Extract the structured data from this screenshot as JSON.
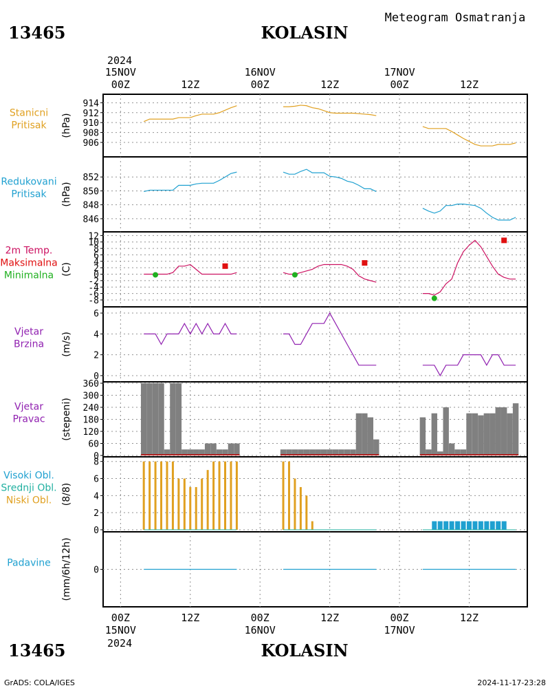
{
  "header": {
    "station_id": "13465",
    "station_name": "KOLASIN",
    "subtitle": "Meteogram Osmatranja",
    "year": "2024"
  },
  "footer": {
    "station_id": "13465",
    "station_name": "KOLASIN",
    "credit": "GrADS: COLA/IGES",
    "timestamp": "2024-11-17-23:28"
  },
  "time_axis": {
    "top_labels": [
      {
        "hour": 0,
        "text": "00Z",
        "date": "15NOV"
      },
      {
        "hour": 12,
        "text": "12Z",
        "date": ""
      },
      {
        "hour": 24,
        "text": "00Z",
        "date": "16NOV"
      },
      {
        "hour": 36,
        "text": "12Z",
        "date": ""
      },
      {
        "hour": 48,
        "text": "00Z",
        "date": "17NOV"
      },
      {
        "hour": 60,
        "text": "12Z",
        "date": ""
      }
    ],
    "range_hours": [
      -3,
      70
    ]
  },
  "panels": [
    {
      "id": "pressure",
      "label_lines": [
        {
          "text": "Stanicni",
          "color": "#e0a020"
        },
        {
          "text": "Pritisak",
          "color": "#e0a020"
        }
      ],
      "unit": "(hPa)"
    },
    {
      "id": "reduced",
      "label_lines": [
        {
          "text": "Redukovani",
          "color": "#1fa0d0"
        },
        {
          "text": "Pritisak",
          "color": "#1fa0d0"
        }
      ],
      "unit": "(hPa)"
    },
    {
      "id": "temp",
      "label_lines": [
        {
          "text": "2m Temp.",
          "color": "#cc1060"
        },
        {
          "text": "Maksimalna",
          "color": "#e01010"
        },
        {
          "text": "Minimalna",
          "color": "#20b020"
        }
      ],
      "unit": "(C)"
    },
    {
      "id": "wspeed",
      "label_lines": [
        {
          "text": "Vjetar",
          "color": "#9020b0"
        },
        {
          "text": "Brzina",
          "color": "#9020b0"
        }
      ],
      "unit": "(m/s)"
    },
    {
      "id": "wdir",
      "label_lines": [
        {
          "text": "Vjetar",
          "color": "#9020b0"
        },
        {
          "text": "Pravac",
          "color": "#9020b0"
        }
      ],
      "unit": "(stepeni)"
    },
    {
      "id": "cloud",
      "label_lines": [
        {
          "text": "Visoki Obl.",
          "color": "#1fa0d0"
        },
        {
          "text": "Srednji Obl.",
          "color": "#20b0a0"
        },
        {
          "text": "Niski Obl.",
          "color": "#e0a020"
        }
      ],
      "unit": "(8/8)"
    },
    {
      "id": "precip",
      "label_lines": [
        {
          "text": "Padavine",
          "color": "#1fa0d0"
        }
      ],
      "unit": "(mm/6h/12h)"
    }
  ],
  "chart_data": [
    {
      "type": "line",
      "id": "pressure",
      "ylabel": "(hPa)",
      "ylim": [
        904.2,
        914.6
      ],
      "yticks": [
        906,
        908,
        910,
        912,
        914
      ],
      "color": "#e0a020",
      "series": [
        {
          "x": [
            4,
            5,
            6,
            7,
            8,
            9,
            10,
            11,
            12,
            13,
            14,
            15,
            16,
            17,
            18,
            19,
            20
          ],
          "y": [
            910.2,
            910.7,
            910.7,
            910.7,
            910.7,
            910.7,
            911.0,
            911.0,
            911.0,
            911.4,
            911.7,
            911.7,
            911.7,
            912.0,
            912.5,
            913.0,
            913.4
          ]
        },
        {
          "x": [
            28,
            29,
            30,
            31,
            32,
            33,
            34,
            35,
            36,
            37,
            38,
            39,
            40,
            41,
            42,
            43,
            44
          ],
          "y": [
            913.2,
            913.2,
            913.3,
            913.5,
            913.4,
            913.0,
            912.8,
            912.4,
            912.0,
            911.9,
            911.9,
            911.9,
            911.9,
            911.8,
            911.7,
            911.6,
            911.4
          ]
        },
        {
          "x": [
            52,
            53,
            54,
            55,
            56,
            57,
            58,
            59,
            60,
            61,
            62,
            63,
            64,
            65,
            66,
            67,
            68
          ],
          "y": [
            909.2,
            908.8,
            908.8,
            908.8,
            908.8,
            908.2,
            907.5,
            906.8,
            906.2,
            905.6,
            905.3,
            905.3,
            905.3,
            905.6,
            905.6,
            905.6,
            905.9
          ]
        }
      ]
    },
    {
      "type": "line",
      "id": "reduced",
      "ylabel": "(hPa)",
      "ylim": [
        845.0,
        854.0
      ],
      "yticks": [
        846,
        848,
        850,
        852
      ],
      "color": "#1fa0d0",
      "series": [
        {
          "x": [
            4,
            5,
            6,
            7,
            8,
            9,
            10,
            11,
            12,
            13,
            14,
            15,
            16,
            17,
            18,
            19,
            20
          ],
          "y": [
            849.9,
            850.1,
            850.1,
            850.1,
            850.1,
            850.1,
            850.8,
            850.8,
            850.8,
            851.0,
            851.1,
            851.1,
            851.1,
            851.5,
            852.0,
            852.5,
            852.7
          ]
        },
        {
          "x": [
            28,
            29,
            30,
            31,
            32,
            33,
            34,
            35,
            36,
            37,
            38,
            39,
            40,
            41,
            42,
            43,
            44
          ],
          "y": [
            852.7,
            852.4,
            852.4,
            852.8,
            853.1,
            852.6,
            852.6,
            852.6,
            852.1,
            852.0,
            851.8,
            851.4,
            851.2,
            850.8,
            850.3,
            850.3,
            849.9
          ]
        },
        {
          "x": [
            52,
            53,
            54,
            55,
            56,
            57,
            58,
            59,
            60,
            61,
            62,
            63,
            64,
            65,
            66,
            67,
            68
          ],
          "y": [
            847.5,
            847.1,
            846.8,
            847.1,
            847.9,
            847.9,
            848.1,
            848.1,
            848.0,
            847.9,
            847.5,
            846.8,
            846.2,
            845.8,
            845.8,
            845.8,
            846.2
          ]
        }
      ]
    },
    {
      "type": "line",
      "id": "temp",
      "ylabel": "(C)",
      "ylim": [
        -9.5,
        12.5
      ],
      "yticks": [
        -8,
        -6,
        -4,
        -2,
        0,
        2,
        4,
        6,
        8,
        10,
        12
      ],
      "color": "#cc1060",
      "series": [
        {
          "x": [
            4,
            5,
            6,
            7,
            8,
            9,
            10,
            11,
            12,
            13,
            14,
            15,
            16,
            17,
            18,
            19,
            20
          ],
          "y": [
            0,
            0,
            0,
            0,
            0,
            0.5,
            2.5,
            2.5,
            3,
            1.5,
            0,
            0,
            0,
            0,
            0,
            0,
            0.5
          ]
        },
        {
          "x": [
            28,
            29,
            30,
            31,
            32,
            33,
            34,
            35,
            36,
            37,
            38,
            39,
            40,
            41,
            42,
            43,
            44
          ],
          "y": [
            0.5,
            0,
            0,
            0.5,
            1,
            1.5,
            2.5,
            3,
            3,
            3,
            3,
            2.5,
            1.5,
            -0.5,
            -1.5,
            -2,
            -2.5
          ]
        },
        {
          "x": [
            52,
            53,
            54,
            55,
            56,
            57,
            58,
            59,
            60,
            61,
            62,
            63,
            64,
            65,
            66,
            67,
            68
          ],
          "y": [
            -6,
            -6,
            -6.5,
            -5.5,
            -3,
            -1.5,
            3.5,
            7,
            9,
            10.5,
            8.5,
            5.5,
            2.5,
            0,
            -1,
            -1.5,
            -1.5
          ]
        }
      ],
      "maximum": {
        "x": [
          18,
          42,
          66
        ],
        "y": [
          2.5,
          3.5,
          10.5
        ],
        "color": "#e01010"
      },
      "minimum": {
        "x": [
          6,
          30,
          54
        ],
        "y": [
          -0.2,
          -0.2,
          -7.5
        ],
        "color": "#20b020"
      }
    },
    {
      "type": "line",
      "id": "wspeed",
      "ylabel": "(m/s)",
      "ylim": [
        -0.2,
        6.2
      ],
      "yticks": [
        0,
        2,
        4,
        6
      ],
      "color": "#9020b0",
      "series": [
        {
          "x": [
            4,
            5,
            6,
            7,
            8,
            9,
            10,
            11,
            12,
            13,
            14,
            15,
            16,
            17,
            18,
            19,
            20
          ],
          "y": [
            4,
            4,
            4,
            3,
            4,
            4,
            4,
            5,
            4,
            5,
            4,
            5,
            4,
            4,
            5,
            4,
            4
          ]
        },
        {
          "x": [
            28,
            29,
            30,
            31,
            32,
            33,
            34,
            35,
            36,
            37,
            38,
            39,
            40,
            41,
            42,
            43,
            44
          ],
          "y": [
            4,
            4,
            3,
            3,
            4,
            5,
            5,
            5,
            6,
            5,
            4,
            3,
            2,
            1,
            1,
            1,
            1
          ]
        },
        {
          "x": [
            52,
            53,
            54,
            55,
            56,
            57,
            58,
            59,
            60,
            61,
            62,
            63,
            64,
            65,
            66,
            67,
            68
          ],
          "y": [
            1,
            1,
            1,
            0,
            1,
            1,
            1,
            2,
            2,
            2,
            2,
            1,
            2,
            2,
            1,
            1,
            1
          ]
        }
      ]
    },
    {
      "type": "bar",
      "id": "wdir",
      "ylabel": "(stepeni)",
      "ylim": [
        0,
        360
      ],
      "yticks": [
        0,
        60,
        120,
        180,
        240,
        300,
        360
      ],
      "color": "#808080",
      "baseline_color": "#c00000",
      "series": [
        {
          "x": [
            4,
            5,
            6,
            7,
            8,
            9,
            10,
            11,
            12,
            13,
            14,
            15,
            16,
            17,
            18,
            19,
            20
          ],
          "y": [
            360,
            360,
            360,
            360,
            30,
            360,
            360,
            30,
            30,
            30,
            30,
            60,
            60,
            30,
            30,
            60,
            60
          ]
        },
        {
          "x": [
            28,
            29,
            30,
            31,
            32,
            33,
            34,
            35,
            36,
            37,
            38,
            39,
            40,
            41,
            42,
            43,
            44
          ],
          "y": [
            30,
            30,
            30,
            30,
            30,
            30,
            30,
            30,
            30,
            30,
            30,
            30,
            30,
            210,
            210,
            190,
            80
          ]
        },
        {
          "x": [
            52,
            53,
            54,
            55,
            56,
            57,
            58,
            59,
            60,
            61,
            62,
            63,
            64,
            65,
            66,
            67,
            68
          ],
          "y": [
            190,
            30,
            210,
            20,
            240,
            60,
            30,
            30,
            210,
            210,
            200,
            210,
            210,
            240,
            240,
            210,
            260
          ]
        }
      ]
    },
    {
      "type": "bar",
      "id": "cloud",
      "ylabel": "(8/8)",
      "ylim": [
        0,
        8.3
      ],
      "yticks": [
        0,
        2,
        4,
        6,
        8
      ],
      "low": {
        "name": "Niski Obl.",
        "color": "#e0a020",
        "x": [
          4,
          5,
          6,
          7,
          8,
          9,
          10,
          11,
          12,
          13,
          14,
          15,
          16,
          17,
          18,
          19,
          20
        ],
        "y": [
          8,
          8,
          8,
          8,
          8,
          8,
          6,
          6,
          5,
          5,
          6,
          7,
          8,
          8,
          8,
          8,
          8
        ]
      },
      "low2": {
        "x": [
          28,
          29,
          30,
          31,
          32,
          33
        ],
        "y": [
          8,
          8,
          6,
          5,
          4,
          1
        ]
      },
      "high": {
        "name": "Visoki Obl.",
        "color": "#1fa0d0",
        "x": [
          54,
          55,
          56,
          57,
          58,
          59,
          60,
          61,
          62,
          63,
          64,
          65,
          66
        ],
        "y": [
          1,
          1,
          1,
          1,
          1,
          1,
          1,
          1,
          1,
          1,
          1,
          1,
          1
        ]
      },
      "mid_color": "#20b0a0"
    },
    {
      "type": "line",
      "id": "precip",
      "ylabel": "(mm/6h/12h)",
      "ylim": [
        -4,
        4
      ],
      "yticks": [
        0
      ],
      "color": "#1fa0d0",
      "series": [
        {
          "x": [
            4,
            20
          ],
          "y": [
            0,
            0
          ]
        },
        {
          "x": [
            28,
            44
          ],
          "y": [
            0,
            0
          ]
        },
        {
          "x": [
            52,
            68
          ],
          "y": [
            0,
            0
          ]
        }
      ]
    }
  ]
}
